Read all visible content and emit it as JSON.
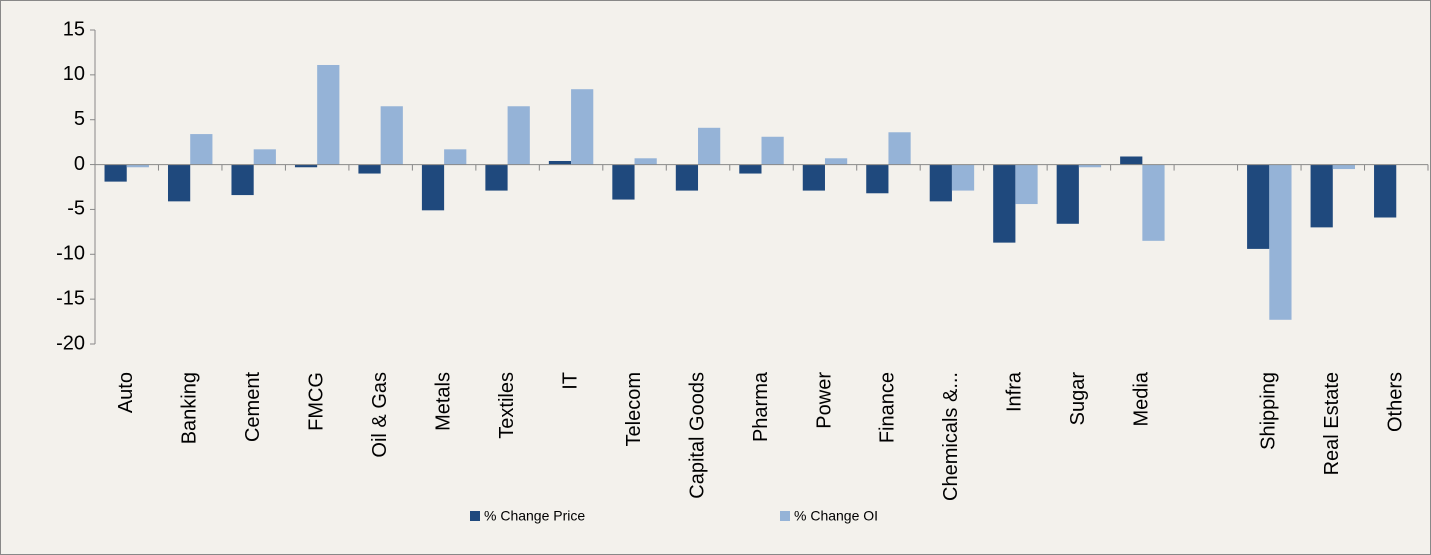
{
  "chart_data": {
    "type": "bar",
    "categories": [
      "Auto",
      "Banking",
      "Cement",
      "FMCG",
      "Oil & Gas",
      "Metals",
      "Textiles",
      "IT",
      "Telecom",
      "Capital Goods",
      "Pharma",
      "Power",
      "Finance",
      "Chemicals &...",
      "Infra",
      "Sugar",
      "Media",
      null,
      "Shipping",
      "Real Estate",
      "Others"
    ],
    "series": [
      {
        "name": "% Change Price",
        "color": "#1f497d",
        "values": [
          -1.9,
          -4.1,
          -3.4,
          -0.3,
          -1.0,
          -5.1,
          -2.9,
          0.4,
          -3.9,
          -2.9,
          -1.0,
          -2.9,
          -3.2,
          -4.1,
          -8.7,
          -6.6,
          0.9,
          null,
          -9.4,
          -7.0,
          -5.9
        ]
      },
      {
        "name": "% Change OI",
        "color": "#95b3d7",
        "values": [
          -0.3,
          3.4,
          1.7,
          11.1,
          6.5,
          1.7,
          6.5,
          8.4,
          0.7,
          4.1,
          3.1,
          0.7,
          3.6,
          -2.9,
          -4.4,
          -0.3,
          -8.5,
          null,
          -17.3,
          -0.5,
          null
        ]
      }
    ],
    "ylim": [
      -20,
      15
    ],
    "yticks": [
      -20,
      -15,
      -10,
      -5,
      0,
      5,
      10,
      15
    ],
    "grid": false,
    "legend": "bottom"
  }
}
